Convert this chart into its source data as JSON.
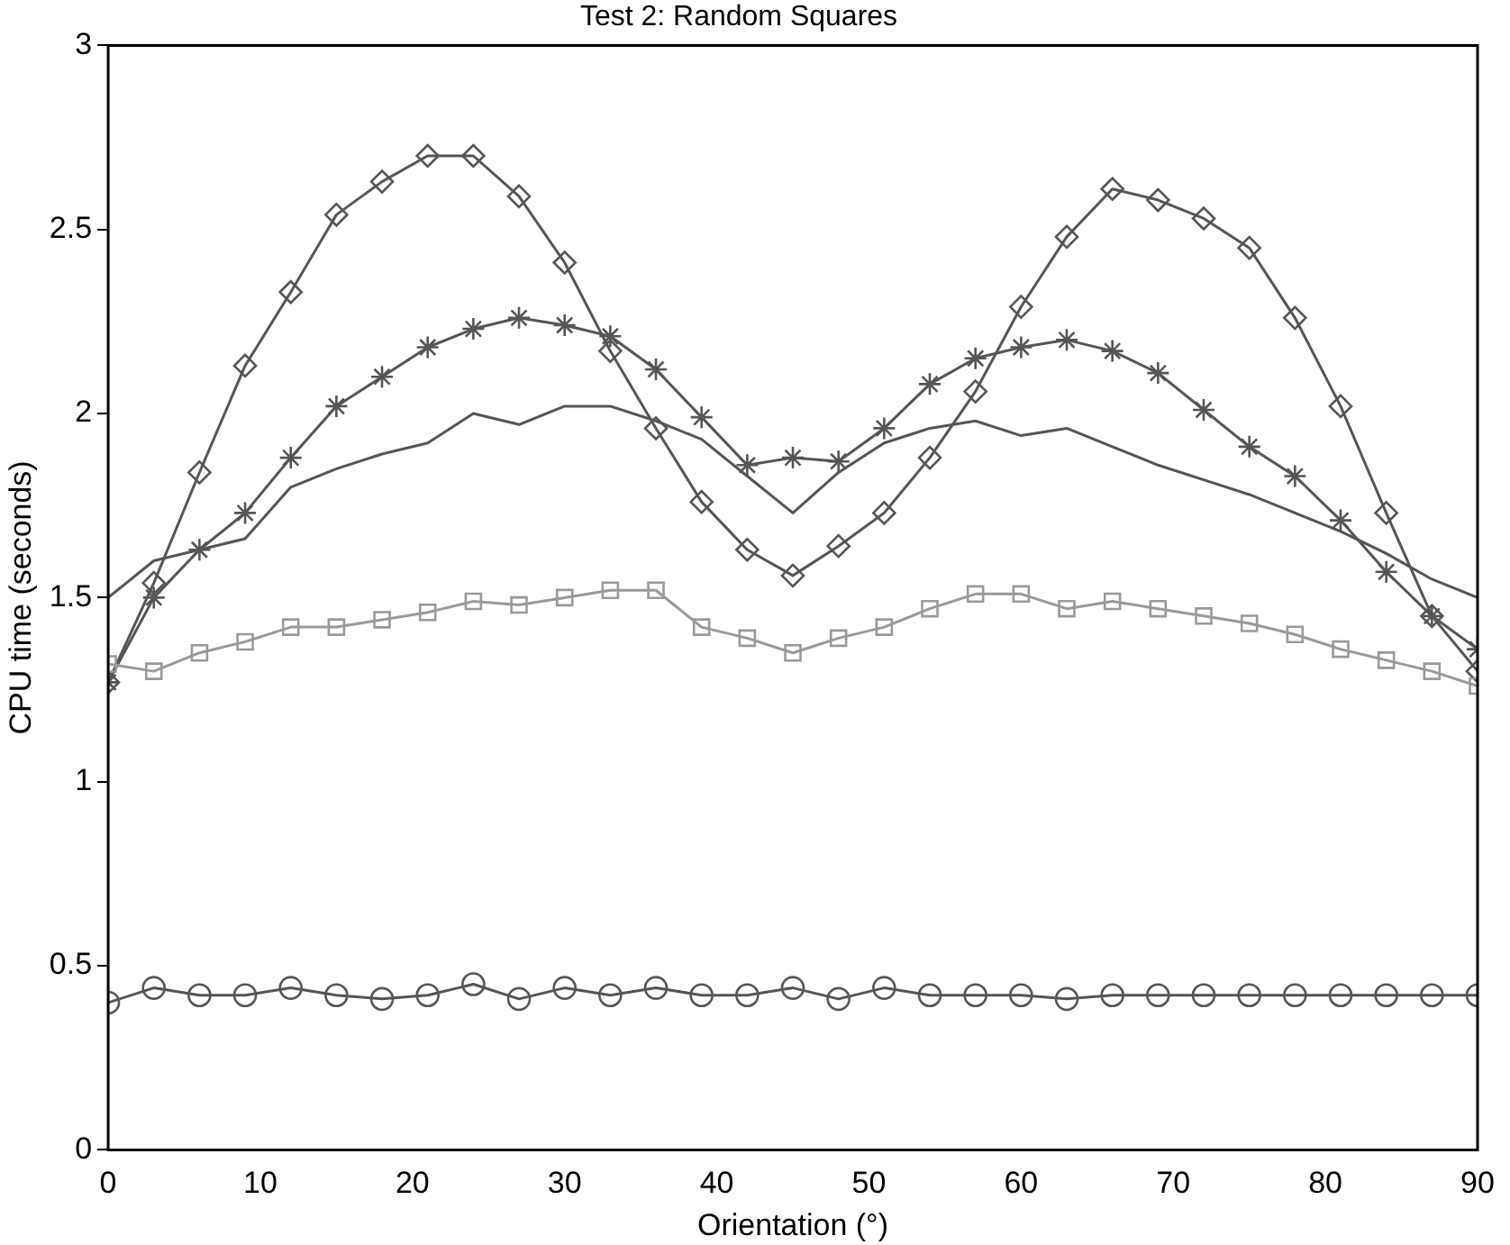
{
  "chart_data": {
    "type": "line",
    "title": "Test 2: Random Squares",
    "xlabel": "Orientation (°)",
    "ylabel": "CPU time (seconds)",
    "x": [
      0,
      3,
      6,
      9,
      12,
      15,
      18,
      21,
      24,
      27,
      30,
      33,
      36,
      39,
      42,
      45,
      48,
      51,
      54,
      57,
      60,
      63,
      66,
      69,
      72,
      75,
      78,
      81,
      84,
      87,
      90
    ],
    "xlim": [
      0,
      90
    ],
    "xticks": [
      0,
      10,
      20,
      30,
      40,
      50,
      60,
      70,
      80,
      90
    ],
    "ylim": [
      0,
      3
    ],
    "yticks": [
      0,
      0.5,
      1,
      1.5,
      2,
      2.5,
      3
    ],
    "grid": false,
    "legend": false,
    "series": [
      {
        "color": "#555555",
        "marker": "diamond",
        "values": [
          1.27,
          1.54,
          1.84,
          2.13,
          2.33,
          2.54,
          2.63,
          2.7,
          2.7,
          2.59,
          2.41,
          2.17,
          1.96,
          1.76,
          1.63,
          1.56,
          1.64,
          1.73,
          1.88,
          2.06,
          2.29,
          2.48,
          2.61,
          2.58,
          2.53,
          2.45,
          2.26,
          2.02,
          1.73,
          1.45,
          1.3
        ]
      },
      {
        "color": "#555555",
        "marker": "cross",
        "values": [
          1.27,
          1.5,
          1.63,
          1.73,
          1.88,
          2.02,
          2.1,
          2.18,
          2.23,
          2.26,
          2.24,
          2.21,
          2.12,
          1.99,
          1.86,
          1.88,
          1.87,
          1.96,
          2.08,
          2.15,
          2.18,
          2.2,
          2.17,
          2.11,
          2.01,
          1.91,
          1.83,
          1.71,
          1.57,
          1.45,
          1.36
        ]
      },
      {
        "color": "#555555",
        "marker": "none",
        "values": [
          1.5,
          1.6,
          1.63,
          1.66,
          1.8,
          1.85,
          1.89,
          1.92,
          2.0,
          1.97,
          2.02,
          2.02,
          1.98,
          1.93,
          1.83,
          1.73,
          1.84,
          1.92,
          1.96,
          1.98,
          1.94,
          1.96,
          1.91,
          1.86,
          1.82,
          1.78,
          1.73,
          1.68,
          1.62,
          1.55,
          1.5
        ]
      },
      {
        "color": "#999999",
        "marker": "square",
        "values": [
          1.32,
          1.3,
          1.35,
          1.38,
          1.42,
          1.42,
          1.44,
          1.46,
          1.49,
          1.48,
          1.5,
          1.52,
          1.52,
          1.42,
          1.39,
          1.35,
          1.39,
          1.42,
          1.47,
          1.51,
          1.51,
          1.47,
          1.49,
          1.47,
          1.45,
          1.43,
          1.4,
          1.36,
          1.33,
          1.3,
          1.26
        ]
      },
      {
        "color": "#555555",
        "marker": "circle",
        "values": [
          0.4,
          0.44,
          0.42,
          0.42,
          0.44,
          0.42,
          0.41,
          0.42,
          0.45,
          0.41,
          0.44,
          0.42,
          0.44,
          0.42,
          0.42,
          0.44,
          0.41,
          0.44,
          0.42,
          0.42,
          0.42,
          0.41,
          0.42,
          0.42,
          0.42,
          0.42,
          0.42,
          0.42,
          0.42,
          0.42,
          0.42
        ]
      }
    ]
  }
}
